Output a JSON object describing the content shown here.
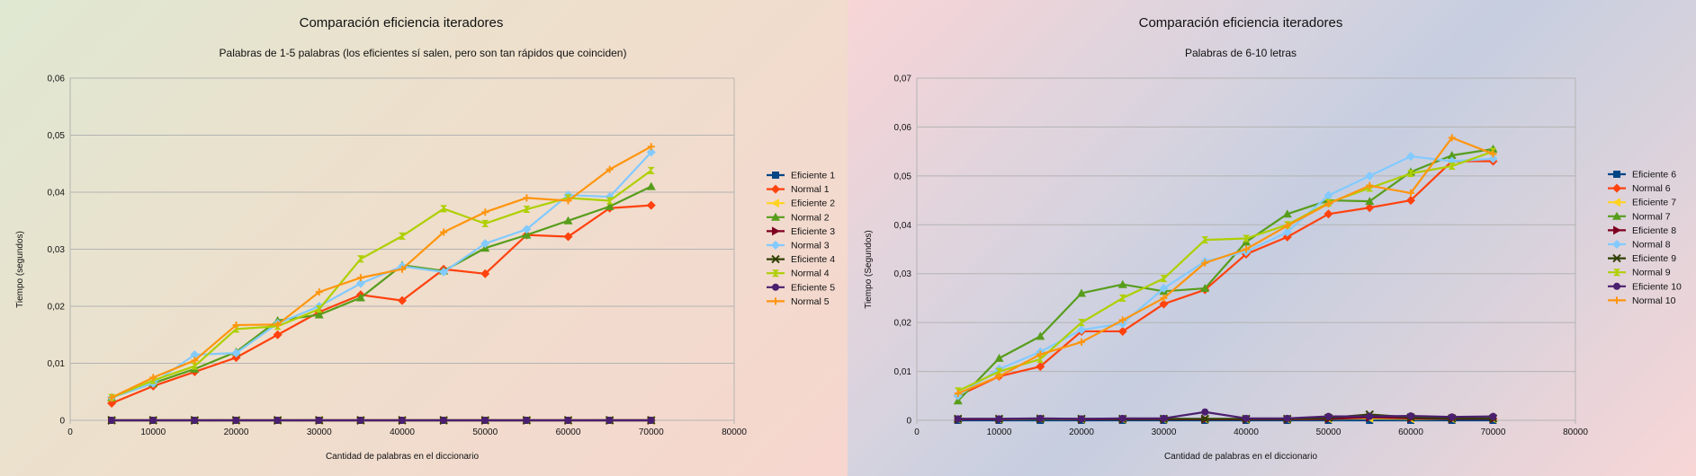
{
  "chart_data": [
    {
      "type": "line",
      "title": "Comparación eficiencia iteradores",
      "subtitle": "Palabras de 1-5 palabras (los eficientes sí salen, pero son tan rápidos que coinciden)",
      "xlabel": "Cantidad de palabras en el diccionario",
      "ylabel": "Tiempo (segundos)",
      "xlim": [
        0,
        80000
      ],
      "ylim": [
        0,
        0.06
      ],
      "xticks": [
        0,
        10000,
        20000,
        30000,
        40000,
        50000,
        60000,
        70000,
        80000
      ],
      "yticks": [
        0,
        0.01,
        0.02,
        0.03,
        0.04,
        0.05,
        0.06
      ],
      "xtick_labels": [
        "0",
        "10000",
        "20000",
        "30000",
        "40000",
        "50000",
        "60000",
        "70000",
        "80000"
      ],
      "ytick_labels": [
        "0",
        "0,01",
        "0,02",
        "0,03",
        "0,04",
        "0,05",
        "0,06"
      ],
      "grid": true,
      "legend_position": "right",
      "x": [
        5000,
        10000,
        15000,
        20000,
        25000,
        30000,
        35000,
        40000,
        45000,
        50000,
        55000,
        60000,
        65000,
        70000
      ],
      "series": [
        {
          "name": "Eficiente 1",
          "color": "#004586",
          "marker": "square",
          "values": [
            0,
            0,
            0,
            0,
            0,
            0,
            0,
            0,
            0,
            0,
            0,
            0,
            0,
            0
          ]
        },
        {
          "name": "Normal 1",
          "color": "#ff420e",
          "marker": "diamond",
          "values": [
            0.003,
            0.006,
            0.0085,
            0.011,
            0.015,
            0.019,
            0.022,
            0.021,
            0.0265,
            0.0257,
            0.0325,
            0.0322,
            0.0372,
            0.0377
          ]
        },
        {
          "name": "Eficiente 2",
          "color": "#ffd320",
          "marker": "triangle-left",
          "values": [
            0,
            0,
            0,
            0,
            0,
            0,
            0,
            0,
            0,
            0,
            0,
            0,
            0,
            0
          ]
        },
        {
          "name": "Normal 2",
          "color": "#579d1c",
          "marker": "triangle-up",
          "values": [
            0.004,
            0.0065,
            0.009,
            0.012,
            0.0175,
            0.0185,
            0.0215,
            0.0272,
            0.0262,
            0.0302,
            0.0325,
            0.035,
            0.0375,
            0.041
          ]
        },
        {
          "name": "Eficiente 3",
          "color": "#7e0021",
          "marker": "triangle-right",
          "values": [
            0,
            0,
            0,
            0,
            0,
            0,
            0,
            0,
            0,
            0,
            0,
            0,
            0,
            0
          ]
        },
        {
          "name": "Normal 3",
          "color": "#83caff",
          "marker": "diamond",
          "values": [
            0.004,
            0.0065,
            0.0115,
            0.0118,
            0.017,
            0.02,
            0.024,
            0.027,
            0.026,
            0.031,
            0.0335,
            0.0395,
            0.0392,
            0.047
          ]
        },
        {
          "name": "Eficiente 4",
          "color": "#314004",
          "marker": "x",
          "values": [
            0,
            0,
            0,
            0,
            0,
            0,
            0,
            0,
            0,
            0,
            0,
            0,
            0,
            0
          ]
        },
        {
          "name": "Normal 4",
          "color": "#aecf00",
          "marker": "hourglass",
          "values": [
            0.004,
            0.007,
            0.0095,
            0.016,
            0.0165,
            0.0195,
            0.0283,
            0.0323,
            0.0371,
            0.0345,
            0.037,
            0.039,
            0.0385,
            0.0438
          ]
        },
        {
          "name": "Eficiente 5",
          "color": "#4b1f6f",
          "marker": "circle",
          "values": [
            0,
            0,
            0,
            0,
            0,
            0,
            0,
            0,
            0,
            0,
            0,
            0,
            0,
            0
          ]
        },
        {
          "name": "Normal 5",
          "color": "#ff950e",
          "marker": "plus",
          "values": [
            0.004,
            0.0075,
            0.0105,
            0.0167,
            0.0168,
            0.0225,
            0.025,
            0.0265,
            0.033,
            0.0365,
            0.039,
            0.0385,
            0.044,
            0.048
          ]
        }
      ]
    },
    {
      "type": "line",
      "title": "Comparación eficiencia iteradores",
      "subtitle": "Palabras de 6-10 letras",
      "xlabel": "Cantidad de palabras en el diccionario",
      "ylabel": "Tiempo (Segundos)",
      "xlim": [
        0,
        80000
      ],
      "ylim": [
        0,
        0.07
      ],
      "xticks": [
        0,
        10000,
        20000,
        30000,
        40000,
        50000,
        60000,
        70000,
        80000
      ],
      "yticks": [
        0,
        0.01,
        0.02,
        0.03,
        0.04,
        0.05,
        0.06,
        0.07
      ],
      "xtick_labels": [
        "0",
        "10000",
        "20000",
        "30000",
        "40000",
        "50000",
        "60000",
        "70000",
        "80000"
      ],
      "ytick_labels": [
        "0",
        "0,01",
        "0,02",
        "0,03",
        "0,04",
        "0,05",
        "0,06",
        "0,07"
      ],
      "grid": true,
      "legend_position": "right",
      "x": [
        5000,
        10000,
        15000,
        20000,
        25000,
        30000,
        35000,
        40000,
        45000,
        50000,
        55000,
        60000,
        65000,
        70000
      ],
      "series": [
        {
          "name": "Eficiente 6",
          "color": "#004586",
          "marker": "square",
          "values": [
            0,
            0,
            0,
            0,
            0,
            0,
            0,
            0,
            0,
            0,
            0,
            0,
            0,
            0
          ]
        },
        {
          "name": "Normal 6",
          "color": "#ff420e",
          "marker": "diamond",
          "values": [
            0.005,
            0.009,
            0.011,
            0.0182,
            0.0182,
            0.0238,
            0.0267,
            0.034,
            0.0375,
            0.0422,
            0.0435,
            0.045,
            0.053,
            0.053
          ]
        },
        {
          "name": "Eficiente 7",
          "color": "#ffd320",
          "marker": "triangle-left",
          "values": [
            0.0002,
            0.0002,
            0.0003,
            0.0002,
            0.0002,
            0.0002,
            0.0002,
            0.0002,
            0.0002,
            0.0003,
            0.0004,
            0.0003,
            0.0003,
            0.0003
          ]
        },
        {
          "name": "Normal 7",
          "color": "#579d1c",
          "marker": "triangle-up",
          "values": [
            0.004,
            0.0127,
            0.0172,
            0.026,
            0.0278,
            0.0264,
            0.027,
            0.0365,
            0.0422,
            0.045,
            0.0448,
            0.0508,
            0.0542,
            0.0555
          ]
        },
        {
          "name": "Eficiente 8",
          "color": "#7e0021",
          "marker": "triangle-right",
          "values": [
            0.0002,
            0.0002,
            0.0003,
            0.0002,
            0.0002,
            0.0002,
            0.0002,
            0.0002,
            0.0002,
            0.0003,
            0.0006,
            0.0004,
            0.0003,
            0.0003
          ]
        },
        {
          "name": "Normal 8",
          "color": "#83caff",
          "marker": "diamond",
          "values": [
            0.005,
            0.0105,
            0.014,
            0.0185,
            0.0198,
            0.027,
            0.0325,
            0.0345,
            0.0385,
            0.046,
            0.05,
            0.054,
            0.053,
            0.0535
          ]
        },
        {
          "name": "Eficiente 9",
          "color": "#314004",
          "marker": "x",
          "values": [
            0.0003,
            0.0003,
            0.0003,
            0.0003,
            0.0003,
            0.0003,
            0.0003,
            0.0003,
            0.0003,
            0.0005,
            0.0012,
            0.0006,
            0.0004,
            0.0004
          ]
        },
        {
          "name": "Normal 9",
          "color": "#aecf00",
          "marker": "hourglass",
          "values": [
            0.006,
            0.01,
            0.0125,
            0.02,
            0.025,
            0.029,
            0.0369,
            0.0372,
            0.04,
            0.0445,
            0.0475,
            0.0505,
            0.052,
            0.055
          ]
        },
        {
          "name": "Eficiente 10",
          "color": "#4b1f6f",
          "marker": "circle",
          "values": [
            0.0003,
            0.0003,
            0.0004,
            0.0003,
            0.0004,
            0.0004,
            0.0017,
            0.0004,
            0.0004,
            0.0008,
            0.0008,
            0.0009,
            0.0007,
            0.0008
          ]
        },
        {
          "name": "Normal 10",
          "color": "#ff950e",
          "marker": "plus",
          "values": [
            0.0055,
            0.009,
            0.0135,
            0.016,
            0.0205,
            0.025,
            0.0322,
            0.035,
            0.0398,
            0.0443,
            0.048,
            0.0465,
            0.0578,
            0.0545
          ]
        }
      ]
    }
  ]
}
